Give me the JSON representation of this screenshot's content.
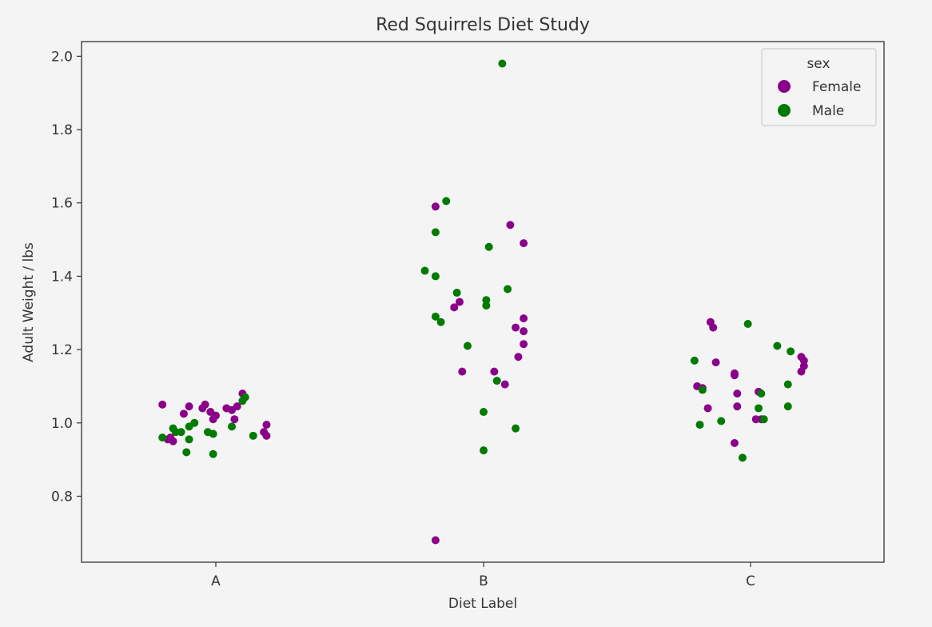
{
  "colors": {
    "background": "#f4f4f4",
    "axes_frame": "#333333",
    "legend_frame": "#cccccc",
    "text": "#333333"
  },
  "chart_data": {
    "type": "scatter",
    "subtype": "strip",
    "title": "Red Squirrels Diet Study",
    "xlabel": "Diet Label",
    "ylabel": "Adult Weight / lbs",
    "categories": [
      "A",
      "B",
      "C"
    ],
    "ylim": [
      0.62,
      2.04
    ],
    "yticks": [
      0.8,
      1.0,
      1.2,
      1.4,
      1.6,
      1.8,
      2.0
    ],
    "ytick_labels": [
      "0.8",
      "1.0",
      "1.2",
      "1.4",
      "1.6",
      "1.8",
      "2.0"
    ],
    "grid": false,
    "legend": {
      "title": "sex",
      "position": "top-right",
      "entries": [
        {
          "label": "Female",
          "color": "#8b008b"
        },
        {
          "label": "Male",
          "color": "#007b00"
        }
      ]
    },
    "series": [
      {
        "name": "Female",
        "color": "#8b008b",
        "points": [
          {
            "category": "A",
            "jitter": -0.2,
            "y": 1.05
          },
          {
            "category": "A",
            "jitter": -0.12,
            "y": 1.025
          },
          {
            "category": "A",
            "jitter": -0.1,
            "y": 1.045
          },
          {
            "category": "A",
            "jitter": -0.05,
            "y": 1.04
          },
          {
            "category": "A",
            "jitter": -0.04,
            "y": 1.05
          },
          {
            "category": "A",
            "jitter": -0.02,
            "y": 1.03
          },
          {
            "category": "A",
            "jitter": 0.0,
            "y": 1.02
          },
          {
            "category": "A",
            "jitter": -0.01,
            "y": 1.01
          },
          {
            "category": "A",
            "jitter": 0.04,
            "y": 1.04
          },
          {
            "category": "A",
            "jitter": 0.06,
            "y": 1.035
          },
          {
            "category": "A",
            "jitter": 0.08,
            "y": 1.045
          },
          {
            "category": "A",
            "jitter": 0.1,
            "y": 1.08
          },
          {
            "category": "A",
            "jitter": 0.07,
            "y": 1.01
          },
          {
            "category": "A",
            "jitter": 0.19,
            "y": 0.995
          },
          {
            "category": "A",
            "jitter": 0.18,
            "y": 0.975
          },
          {
            "category": "A",
            "jitter": 0.19,
            "y": 0.965
          },
          {
            "category": "A",
            "jitter": -0.17,
            "y": 0.96
          },
          {
            "category": "A",
            "jitter": -0.16,
            "y": 0.95
          },
          {
            "category": "A",
            "jitter": -0.18,
            "y": 0.955
          },
          {
            "category": "B",
            "jitter": -0.18,
            "y": 0.68
          },
          {
            "category": "B",
            "jitter": -0.18,
            "y": 1.59
          },
          {
            "category": "B",
            "jitter": 0.1,
            "y": 1.54
          },
          {
            "category": "B",
            "jitter": 0.15,
            "y": 1.49
          },
          {
            "category": "B",
            "jitter": -0.09,
            "y": 1.33
          },
          {
            "category": "B",
            "jitter": -0.11,
            "y": 1.315
          },
          {
            "category": "B",
            "jitter": 0.15,
            "y": 1.285
          },
          {
            "category": "B",
            "jitter": 0.12,
            "y": 1.26
          },
          {
            "category": "B",
            "jitter": 0.15,
            "y": 1.25
          },
          {
            "category": "B",
            "jitter": 0.15,
            "y": 1.215
          },
          {
            "category": "B",
            "jitter": 0.13,
            "y": 1.18
          },
          {
            "category": "B",
            "jitter": -0.08,
            "y": 1.14
          },
          {
            "category": "B",
            "jitter": 0.04,
            "y": 1.14
          },
          {
            "category": "B",
            "jitter": 0.08,
            "y": 1.105
          },
          {
            "category": "C",
            "jitter": -0.15,
            "y": 1.275
          },
          {
            "category": "C",
            "jitter": -0.14,
            "y": 1.26
          },
          {
            "category": "C",
            "jitter": -0.13,
            "y": 1.165
          },
          {
            "category": "C",
            "jitter": -0.06,
            "y": 1.135
          },
          {
            "category": "C",
            "jitter": -0.06,
            "y": 1.13
          },
          {
            "category": "C",
            "jitter": -0.2,
            "y": 1.1
          },
          {
            "category": "C",
            "jitter": -0.18,
            "y": 1.095
          },
          {
            "category": "C",
            "jitter": -0.05,
            "y": 1.08
          },
          {
            "category": "C",
            "jitter": 0.03,
            "y": 1.085
          },
          {
            "category": "C",
            "jitter": -0.16,
            "y": 1.04
          },
          {
            "category": "C",
            "jitter": -0.05,
            "y": 1.045
          },
          {
            "category": "C",
            "jitter": 0.02,
            "y": 1.01
          },
          {
            "category": "C",
            "jitter": -0.06,
            "y": 0.945
          },
          {
            "category": "C",
            "jitter": 0.04,
            "y": 1.01
          },
          {
            "category": "C",
            "jitter": 0.19,
            "y": 1.18
          },
          {
            "category": "C",
            "jitter": 0.2,
            "y": 1.17
          },
          {
            "category": "C",
            "jitter": 0.2,
            "y": 1.155
          },
          {
            "category": "C",
            "jitter": 0.19,
            "y": 1.14
          }
        ]
      },
      {
        "name": "Male",
        "color": "#007b00",
        "points": [
          {
            "category": "A",
            "jitter": -0.16,
            "y": 0.985
          },
          {
            "category": "A",
            "jitter": -0.13,
            "y": 0.975
          },
          {
            "category": "A",
            "jitter": -0.1,
            "y": 0.99
          },
          {
            "category": "A",
            "jitter": -0.08,
            "y": 1.0
          },
          {
            "category": "A",
            "jitter": -0.1,
            "y": 0.955
          },
          {
            "category": "A",
            "jitter": -0.11,
            "y": 0.92
          },
          {
            "category": "A",
            "jitter": -0.03,
            "y": 0.975
          },
          {
            "category": "A",
            "jitter": -0.01,
            "y": 0.97
          },
          {
            "category": "A",
            "jitter": -0.01,
            "y": 0.915
          },
          {
            "category": "A",
            "jitter": 0.06,
            "y": 0.99
          },
          {
            "category": "A",
            "jitter": 0.1,
            "y": 1.06
          },
          {
            "category": "A",
            "jitter": 0.11,
            "y": 1.07
          },
          {
            "category": "A",
            "jitter": 0.14,
            "y": 0.965
          },
          {
            "category": "A",
            "jitter": -0.2,
            "y": 0.96
          },
          {
            "category": "A",
            "jitter": -0.15,
            "y": 0.975
          },
          {
            "category": "B",
            "jitter": 0.07,
            "y": 1.98
          },
          {
            "category": "B",
            "jitter": -0.14,
            "y": 1.605
          },
          {
            "category": "B",
            "jitter": -0.18,
            "y": 1.52
          },
          {
            "category": "B",
            "jitter": 0.02,
            "y": 1.48
          },
          {
            "category": "B",
            "jitter": -0.22,
            "y": 1.415
          },
          {
            "category": "B",
            "jitter": -0.18,
            "y": 1.4
          },
          {
            "category": "B",
            "jitter": -0.1,
            "y": 1.355
          },
          {
            "category": "B",
            "jitter": 0.09,
            "y": 1.365
          },
          {
            "category": "B",
            "jitter": 0.01,
            "y": 1.335
          },
          {
            "category": "B",
            "jitter": 0.01,
            "y": 1.32
          },
          {
            "category": "B",
            "jitter": -0.18,
            "y": 1.29
          },
          {
            "category": "B",
            "jitter": -0.16,
            "y": 1.275
          },
          {
            "category": "B",
            "jitter": -0.06,
            "y": 1.21
          },
          {
            "category": "B",
            "jitter": 0.05,
            "y": 1.115
          },
          {
            "category": "B",
            "jitter": 0.0,
            "y": 1.03
          },
          {
            "category": "B",
            "jitter": 0.12,
            "y": 0.985
          },
          {
            "category": "B",
            "jitter": 0.0,
            "y": 0.925
          },
          {
            "category": "C",
            "jitter": -0.21,
            "y": 1.17
          },
          {
            "category": "C",
            "jitter": -0.18,
            "y": 1.09
          },
          {
            "category": "C",
            "jitter": -0.01,
            "y": 1.27
          },
          {
            "category": "C",
            "jitter": 0.1,
            "y": 1.21
          },
          {
            "category": "C",
            "jitter": 0.15,
            "y": 1.195
          },
          {
            "category": "C",
            "jitter": 0.14,
            "y": 1.105
          },
          {
            "category": "C",
            "jitter": 0.04,
            "y": 1.08
          },
          {
            "category": "C",
            "jitter": 0.03,
            "y": 1.04
          },
          {
            "category": "C",
            "jitter": 0.14,
            "y": 1.045
          },
          {
            "category": "C",
            "jitter": -0.11,
            "y": 1.005
          },
          {
            "category": "C",
            "jitter": 0.05,
            "y": 1.01
          },
          {
            "category": "C",
            "jitter": -0.19,
            "y": 0.995
          },
          {
            "category": "C",
            "jitter": -0.03,
            "y": 0.905
          }
        ]
      }
    ]
  }
}
